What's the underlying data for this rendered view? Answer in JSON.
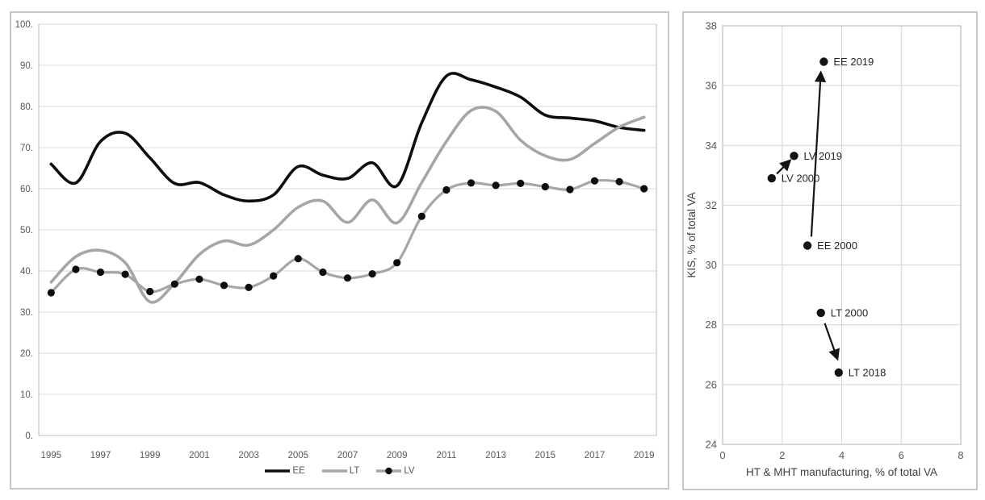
{
  "figure": {
    "background": "#ffffff",
    "panel_border_color": "#c6c6c6"
  },
  "chart_data": [
    {
      "type": "line",
      "title": "",
      "xlabel": "",
      "ylabel": "",
      "ylim": [
        0,
        100
      ],
      "grid": true,
      "legend_position": "bottom",
      "colors": {
        "grid": "#d9d9d9",
        "axis": "#bfbfbf",
        "tick_text": "#595959"
      },
      "years": [
        1995,
        1996,
        1997,
        1998,
        1999,
        2000,
        2001,
        2002,
        2003,
        2004,
        2005,
        2006,
        2007,
        2008,
        2009,
        2010,
        2011,
        2012,
        2013,
        2014,
        2015,
        2016,
        2017,
        2018,
        2019
      ],
      "x_ticks": [
        1995,
        1997,
        1999,
        2001,
        2003,
        2005,
        2007,
        2009,
        2011,
        2013,
        2015,
        2017,
        2019
      ],
      "y_ticks": [
        {
          "label": "100.",
          "value": 100
        },
        {
          "label": "90.",
          "value": 90
        },
        {
          "label": "80.",
          "value": 80
        },
        {
          "label": "70.",
          "value": 70
        },
        {
          "label": "60.",
          "value": 60
        },
        {
          "label": "50.",
          "value": 50
        },
        {
          "label": "40.",
          "value": 40
        },
        {
          "label": "30.",
          "value": 30
        },
        {
          "label": "20.",
          "value": 20
        },
        {
          "label": "10.",
          "value": 10
        },
        {
          "label": "0.",
          "value": 0
        }
      ],
      "series": [
        {
          "name": "EE",
          "color": "#0d0d0d",
          "stroke_width": 3.6,
          "smooth": true,
          "marker": null,
          "values": [
            66,
            61.4,
            71.5,
            73.5,
            67.5,
            61.3,
            61.5,
            58.5,
            57,
            58.5,
            65.4,
            63.3,
            62.5,
            66.3,
            60.7,
            76,
            87.4,
            86.5,
            84.7,
            82.3,
            77.9,
            77.2,
            76.5,
            74.9,
            74.2
          ]
        },
        {
          "name": "LT",
          "color": "#a6a6a6",
          "stroke_width": 3.6,
          "smooth": true,
          "marker": null,
          "values": [
            37.3,
            43.5,
            45,
            42,
            32.5,
            37,
            44,
            47.3,
            46.3,
            50,
            55.5,
            57,
            51.8,
            57.3,
            51.7,
            61.5,
            71.5,
            79,
            78.8,
            71.8,
            68,
            67.1,
            71,
            75,
            77.4
          ]
        },
        {
          "name": "LV",
          "color": "#a6a6a6",
          "stroke_width": 3.2,
          "smooth": true,
          "marker": {
            "shape": "circle",
            "color": "#0d0d0d",
            "radius": 4.6
          },
          "values": [
            34.7,
            40.4,
            39.7,
            39.2,
            35,
            36.8,
            38,
            36.5,
            36,
            38.8,
            43,
            39.7,
            38.3,
            39.3,
            42,
            53.3,
            59.7,
            61.4,
            60.8,
            61.3,
            60.5,
            59.8,
            61.9,
            61.7,
            60
          ]
        }
      ]
    },
    {
      "type": "scatter",
      "title": "",
      "xlabel": "HT & MHT manufacturing, % of total VA",
      "ylabel": "KIS, % of total VA",
      "xlim": [
        0,
        8
      ],
      "ylim": [
        24,
        38
      ],
      "grid": true,
      "x_ticks": [
        0,
        2,
        4,
        6,
        8
      ],
      "y_ticks": [
        38,
        36,
        34,
        32,
        30,
        28,
        26,
        24
      ],
      "colors": {
        "grid": "#d9d9d9",
        "axis": "#bfbfbf",
        "tick_text": "#595959",
        "title_text": "#404040",
        "point": "#141414",
        "point_label": "#262626",
        "arrow": "#141414"
      },
      "points": [
        {
          "label": "EE 2019",
          "x": 3.4,
          "y": 36.8
        },
        {
          "label": "LV 2019",
          "x": 2.4,
          "y": 33.65
        },
        {
          "label": "LV 2000",
          "x": 1.65,
          "y": 32.9
        },
        {
          "label": "EE 2000",
          "x": 2.85,
          "y": 30.65
        },
        {
          "label": "LT 2000",
          "x": 3.3,
          "y": 28.4
        },
        {
          "label": "LT 2018",
          "x": 3.9,
          "y": 26.4
        }
      ],
      "arrows": [
        {
          "name": "lv-trajectory",
          "from": {
            "x": 1.82,
            "y": 33.05
          },
          "to": {
            "x": 2.27,
            "y": 33.5
          }
        },
        {
          "name": "ee-trajectory",
          "from": {
            "x": 2.98,
            "y": 30.95
          },
          "to": {
            "x": 3.3,
            "y": 36.45
          }
        },
        {
          "name": "lt-trajectory",
          "from": {
            "x": 3.43,
            "y": 28.05
          },
          "to": {
            "x": 3.86,
            "y": 26.85
          }
        }
      ]
    }
  ]
}
